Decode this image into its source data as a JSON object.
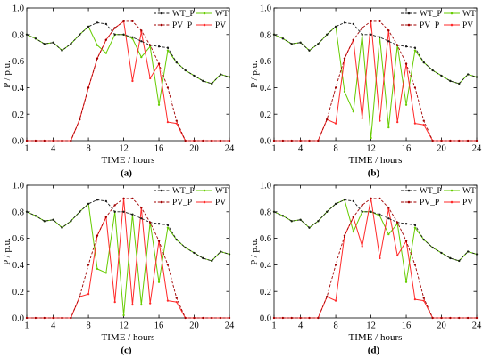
{
  "chart_data": [
    {
      "type": "line",
      "caption": "(a)",
      "xlabel": "TIME / hours",
      "ylabel": "P / p.u.",
      "xlim": [
        1,
        24
      ],
      "ylim": [
        0,
        1
      ],
      "xtick_labels": [
        "1",
        "4",
        "8",
        "12",
        "16",
        "20",
        "24"
      ],
      "ytick_labels": [
        "0.0",
        "0.2",
        "0.4",
        "0.6",
        "0.8",
        "1.0"
      ],
      "grid": false,
      "legend": "top-right",
      "x": [
        1,
        2,
        3,
        4,
        5,
        6,
        7,
        8,
        9,
        10,
        11,
        12,
        13,
        14,
        15,
        16,
        17,
        18,
        19,
        20,
        21,
        22,
        23,
        24
      ],
      "series": [
        {
          "name": "WT_P",
          "dashed": true,
          "color": "#1a1a1a",
          "values": [
            0.8,
            0.77,
            0.73,
            0.74,
            0.68,
            0.73,
            0.8,
            0.86,
            0.89,
            0.88,
            0.8,
            0.8,
            0.78,
            0.75,
            0.72,
            0.71,
            0.7,
            0.59,
            0.53,
            0.49,
            0.45,
            0.43,
            0.5,
            0.48
          ]
        },
        {
          "name": "WT",
          "dashed": false,
          "color": "#66cc00",
          "values": [
            0.8,
            0.77,
            0.73,
            0.74,
            0.68,
            0.73,
            0.8,
            0.86,
            0.72,
            0.66,
            0.8,
            0.8,
            0.77,
            0.63,
            0.71,
            0.27,
            0.68,
            0.59,
            0.53,
            0.49,
            0.45,
            0.43,
            0.5,
            0.48
          ]
        },
        {
          "name": "PV_P",
          "dashed": true,
          "color": "#a00000",
          "values": [
            0,
            0,
            0,
            0,
            0,
            0,
            0.16,
            0.4,
            0.62,
            0.76,
            0.85,
            0.9,
            0.9,
            0.83,
            0.72,
            0.58,
            0.4,
            0.15,
            0,
            0,
            0,
            0,
            0,
            0
          ]
        },
        {
          "name": "PV",
          "dashed": false,
          "color": "#ff2a2a",
          "values": [
            0,
            0,
            0,
            0,
            0,
            0,
            0.16,
            0.4,
            0.62,
            0.76,
            0.85,
            0.9,
            0.45,
            0.82,
            0.47,
            0.58,
            0.14,
            0.13,
            0,
            0,
            0,
            0,
            0,
            0
          ]
        }
      ]
    },
    {
      "type": "line",
      "caption": "(b)",
      "xlabel": "TIME / hours",
      "ylabel": "P / p.u.",
      "xlim": [
        1,
        24
      ],
      "ylim": [
        0,
        1
      ],
      "xtick_labels": [
        "1",
        "4",
        "8",
        "12",
        "16",
        "20",
        "24"
      ],
      "ytick_labels": [
        "0.0",
        "0.2",
        "0.4",
        "0.6",
        "0.8",
        "1.0"
      ],
      "grid": false,
      "legend": "top-right",
      "x": [
        1,
        2,
        3,
        4,
        5,
        6,
        7,
        8,
        9,
        10,
        11,
        12,
        13,
        14,
        15,
        16,
        17,
        18,
        19,
        20,
        21,
        22,
        23,
        24
      ],
      "series": [
        {
          "name": "WT_P",
          "dashed": true,
          "color": "#1a1a1a",
          "values": [
            0.8,
            0.77,
            0.73,
            0.74,
            0.68,
            0.73,
            0.8,
            0.86,
            0.89,
            0.88,
            0.8,
            0.8,
            0.78,
            0.75,
            0.72,
            0.71,
            0.7,
            0.59,
            0.53,
            0.49,
            0.45,
            0.43,
            0.5,
            0.48
          ]
        },
        {
          "name": "WT",
          "dashed": false,
          "color": "#66cc00",
          "values": [
            0.8,
            0.77,
            0.73,
            0.74,
            0.68,
            0.73,
            0.8,
            0.86,
            0.37,
            0.22,
            0.8,
            0.02,
            0.78,
            0.1,
            0.72,
            0.27,
            0.68,
            0.59,
            0.53,
            0.49,
            0.45,
            0.43,
            0.5,
            0.48
          ]
        },
        {
          "name": "PV_P",
          "dashed": true,
          "color": "#a00000",
          "values": [
            0,
            0,
            0,
            0,
            0,
            0,
            0.16,
            0.4,
            0.62,
            0.76,
            0.85,
            0.9,
            0.9,
            0.83,
            0.72,
            0.58,
            0.4,
            0.15,
            0,
            0,
            0,
            0,
            0,
            0
          ]
        },
        {
          "name": "PV",
          "dashed": false,
          "color": "#ff2a2a",
          "values": [
            0,
            0,
            0,
            0,
            0,
            0,
            0.16,
            0.13,
            0.62,
            0.76,
            0.17,
            0.9,
            0.15,
            0.83,
            0.14,
            0.58,
            0.13,
            0.12,
            0,
            0,
            0,
            0,
            0,
            0
          ]
        }
      ]
    },
    {
      "type": "line",
      "caption": "(c)",
      "xlabel": "TIME / hours",
      "ylabel": "P / p.u.",
      "xlim": [
        1,
        24
      ],
      "ylim": [
        0,
        1
      ],
      "xtick_labels": [
        "1",
        "4",
        "8",
        "12",
        "16",
        "20",
        "24"
      ],
      "ytick_labels": [
        "0.0",
        "0.2",
        "0.4",
        "0.6",
        "0.8",
        "1.0"
      ],
      "grid": false,
      "legend": "top-right",
      "x": [
        1,
        2,
        3,
        4,
        5,
        6,
        7,
        8,
        9,
        10,
        11,
        12,
        13,
        14,
        15,
        16,
        17,
        18,
        19,
        20,
        21,
        22,
        23,
        24
      ],
      "series": [
        {
          "name": "WT_P",
          "dashed": true,
          "color": "#1a1a1a",
          "values": [
            0.8,
            0.77,
            0.73,
            0.74,
            0.68,
            0.73,
            0.8,
            0.86,
            0.89,
            0.88,
            0.8,
            0.8,
            0.78,
            0.75,
            0.72,
            0.71,
            0.7,
            0.59,
            0.53,
            0.49,
            0.45,
            0.43,
            0.5,
            0.48
          ]
        },
        {
          "name": "WT",
          "dashed": false,
          "color": "#66cc00",
          "values": [
            0.8,
            0.77,
            0.73,
            0.74,
            0.68,
            0.73,
            0.8,
            0.86,
            0.37,
            0.34,
            0.8,
            0.02,
            0.78,
            0.1,
            0.72,
            0.27,
            0.68,
            0.59,
            0.53,
            0.49,
            0.45,
            0.43,
            0.5,
            0.48
          ]
        },
        {
          "name": "PV_P",
          "dashed": true,
          "color": "#a00000",
          "values": [
            0,
            0,
            0,
            0,
            0,
            0,
            0.16,
            0.4,
            0.62,
            0.76,
            0.85,
            0.9,
            0.9,
            0.83,
            0.72,
            0.58,
            0.4,
            0.15,
            0,
            0,
            0,
            0,
            0,
            0
          ]
        },
        {
          "name": "PV",
          "dashed": false,
          "color": "#ff2a2a",
          "values": [
            0,
            0,
            0,
            0,
            0,
            0,
            0.16,
            0.18,
            0.62,
            0.76,
            0.12,
            0.9,
            0.1,
            0.83,
            0.11,
            0.58,
            0.13,
            0.12,
            0,
            0,
            0,
            0,
            0,
            0
          ]
        }
      ]
    },
    {
      "type": "line",
      "caption": "(d)",
      "xlabel": "TIME / hours",
      "ylabel": "P / p.u.",
      "xlim": [
        1,
        24
      ],
      "ylim": [
        0,
        1
      ],
      "xtick_labels": [
        "1",
        "4",
        "8",
        "12",
        "16",
        "20",
        "24"
      ],
      "ytick_labels": [
        "0.0",
        "0.2",
        "0.4",
        "0.6",
        "0.8",
        "1.0"
      ],
      "grid": false,
      "legend": "top-right",
      "x": [
        1,
        2,
        3,
        4,
        5,
        6,
        7,
        8,
        9,
        10,
        11,
        12,
        13,
        14,
        15,
        16,
        17,
        18,
        19,
        20,
        21,
        22,
        23,
        24
      ],
      "series": [
        {
          "name": "WT_P",
          "dashed": true,
          "color": "#1a1a1a",
          "values": [
            0.8,
            0.77,
            0.73,
            0.74,
            0.68,
            0.73,
            0.8,
            0.86,
            0.89,
            0.88,
            0.8,
            0.8,
            0.78,
            0.75,
            0.72,
            0.71,
            0.7,
            0.59,
            0.53,
            0.49,
            0.45,
            0.43,
            0.5,
            0.48
          ]
        },
        {
          "name": "WT",
          "dashed": false,
          "color": "#66cc00",
          "values": [
            0.8,
            0.77,
            0.73,
            0.74,
            0.68,
            0.73,
            0.8,
            0.86,
            0.89,
            0.65,
            0.8,
            0.8,
            0.77,
            0.63,
            0.71,
            0.27,
            0.68,
            0.59,
            0.53,
            0.49,
            0.45,
            0.43,
            0.5,
            0.48
          ]
        },
        {
          "name": "PV_P",
          "dashed": true,
          "color": "#a00000",
          "values": [
            0,
            0,
            0,
            0,
            0,
            0,
            0.16,
            0.4,
            0.62,
            0.76,
            0.85,
            0.9,
            0.9,
            0.83,
            0.72,
            0.58,
            0.4,
            0.15,
            0,
            0,
            0,
            0,
            0,
            0
          ]
        },
        {
          "name": "PV",
          "dashed": false,
          "color": "#ff2a2a",
          "values": [
            0,
            0,
            0,
            0,
            0,
            0,
            0.16,
            0.13,
            0.62,
            0.76,
            0.54,
            0.9,
            0.45,
            0.82,
            0.47,
            0.58,
            0.14,
            0.13,
            0,
            0,
            0,
            0,
            0,
            0
          ]
        }
      ]
    }
  ]
}
